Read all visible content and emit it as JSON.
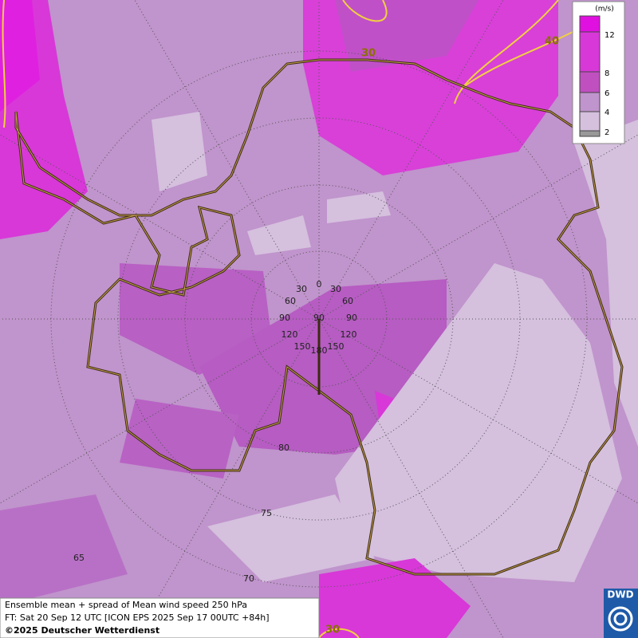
{
  "legend": {
    "unit": "(m/s)",
    "levels": [
      12,
      8,
      6,
      4,
      2
    ]
  },
  "caption": {
    "line1": "Ensemble mean + spread of Mean wind speed 250 hPa",
    "line2": "FT: Sat 20 Sep 12 UTC [ICON EPS 2025 Sep 17 00UTC +84h]",
    "line3": "©2025 Deutscher Wetterdienst"
  },
  "contour_labels": [
    "30",
    "40",
    "30"
  ],
  "longitude_labels": [
    "0",
    "30",
    "30",
    "60",
    "60",
    "90",
    "90",
    "90",
    "120",
    "120",
    "150",
    "150",
    "180"
  ],
  "latitude_labels": [
    "80",
    "75",
    "70",
    "65"
  ],
  "logo": "DWD"
}
